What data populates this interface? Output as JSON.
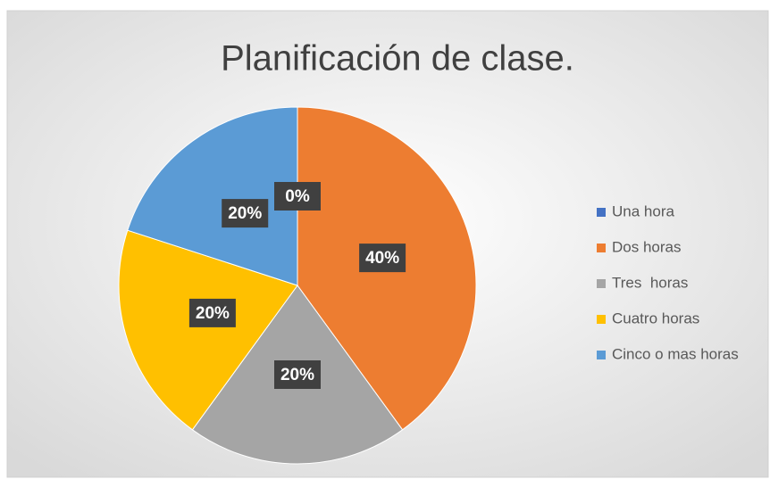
{
  "chart_data": {
    "type": "pie",
    "title": "Planificación de clase.",
    "categories": [
      "Una hora",
      "Dos horas",
      "Tres  horas",
      "Cuatro horas",
      "Cinco o mas horas"
    ],
    "values": [
      0,
      40,
      20,
      20,
      20
    ],
    "value_labels": [
      "0%",
      "40%",
      "20%",
      "20%",
      "20%"
    ],
    "colors": [
      "#4472c4",
      "#ed7d31",
      "#a5a5a5",
      "#ffc000",
      "#5b9bd5"
    ],
    "legend": "right"
  }
}
